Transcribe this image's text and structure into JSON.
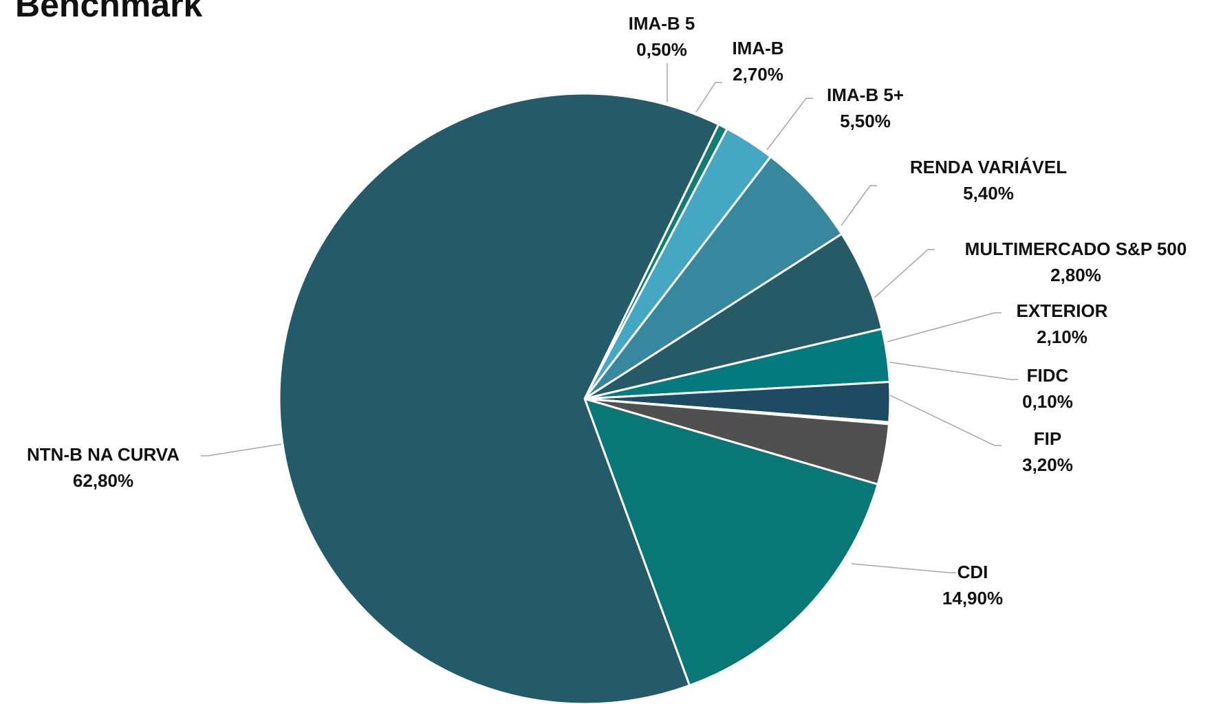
{
  "page": {
    "title": "Benchmark"
  },
  "chart_data": {
    "type": "pie",
    "title": "Benchmark",
    "start_angle_deg": 64,
    "slices": [
      {
        "label": "IMA-B 5",
        "value_label": "0,50%",
        "value": 0.5,
        "color": "#0f7d74"
      },
      {
        "label": "IMA-B",
        "value_label": "2,70%",
        "value": 2.7,
        "color": "#45a7c2"
      },
      {
        "label": "IMA-B 5+",
        "value_label": "5,50%",
        "value": 5.5,
        "color": "#37889f"
      },
      {
        "label": "RENDA VARIÁVEL",
        "value_label": "5,40%",
        "value": 5.4,
        "color": "#255a66"
      },
      {
        "label": "MULTIMERCADO S&P 500",
        "value_label": "2,80%",
        "value": 2.8,
        "color": "#037a7e"
      },
      {
        "label": "EXTERIOR",
        "value_label": "2,10%",
        "value": 2.1,
        "color": "#1e4a63"
      },
      {
        "label": "FIDC",
        "value_label": "0,10%",
        "value": 0.1,
        "color": "#e0707a"
      },
      {
        "label": "FIP",
        "value_label": "3,20%",
        "value": 3.2,
        "color": "#505050"
      },
      {
        "label": "CDI",
        "value_label": "14,90%",
        "value": 14.9,
        "color": "#097776"
      },
      {
        "label": "NTN-B NA CURVA",
        "value_label": "62,80%",
        "value": 62.8,
        "color": "#255b69"
      }
    ]
  }
}
